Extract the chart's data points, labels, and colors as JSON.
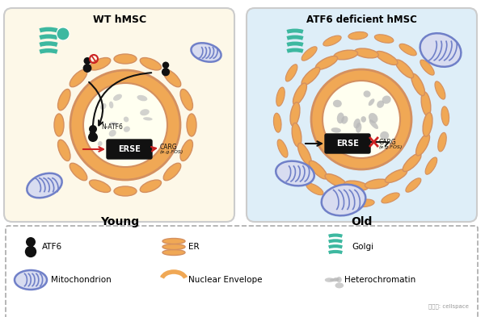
{
  "fig_width": 6.0,
  "fig_height": 3.93,
  "dpi": 100,
  "bg_color": "#ffffff",
  "left_panel": {
    "bg_color": "#fdf8e8",
    "border_color": "#cccccc",
    "title": "WT hMSC",
    "label": "Young",
    "nuclear_color": "#f5deb3",
    "nuclear_border": "#e8a850",
    "er_color": "#f0c080",
    "chromatin_color": "#c8c8c8",
    "golgi_color": "#40b8a0",
    "mito_color": "#8090d0",
    "atf6_color": "#111111"
  },
  "right_panel": {
    "bg_color": "#deeef8",
    "border_color": "#cccccc",
    "title": "ATF6 deficient hMSC",
    "label": "Old",
    "nuclear_color": "#f5deb3",
    "nuclear_border": "#e8a850",
    "er_color": "#f0c080",
    "chromatin_color": "#c8c8c8",
    "golgi_color": "#40b8a0",
    "mito_color": "#8090d0"
  },
  "legend": {
    "border_color": "#aaaaaa",
    "items": [
      "ATF6",
      "ER",
      "Golgi",
      "Mitochondrion",
      "Nuclear Envelope",
      "Heterochromatin"
    ]
  },
  "colors": {
    "orange": "#f0a855",
    "teal": "#3db8a0",
    "blue_purple": "#7080c8",
    "gray": "#b0b0b0",
    "dark": "#111111",
    "red": "#cc2222",
    "er_stripe": "#d49060"
  }
}
